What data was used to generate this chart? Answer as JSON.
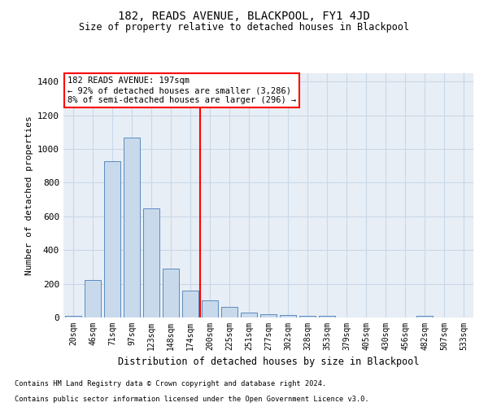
{
  "title": "182, READS AVENUE, BLACKPOOL, FY1 4JD",
  "subtitle": "Size of property relative to detached houses in Blackpool",
  "xlabel": "Distribution of detached houses by size in Blackpool",
  "ylabel": "Number of detached properties",
  "footnote1": "Contains HM Land Registry data © Crown copyright and database right 2024.",
  "footnote2": "Contains public sector information licensed under the Open Government Licence v3.0.",
  "bar_color": "#c9d9ec",
  "bar_edge_color": "#5b8bbf",
  "grid_color": "#c8d8e8",
  "bg_color": "#e8eef5",
  "annotation_title": "182 READS AVENUE: 197sqm",
  "annotation_line1": "← 92% of detached houses are smaller (3,286)",
  "annotation_line2": "8% of semi-detached houses are larger (296) →",
  "categories": [
    "20sqm",
    "46sqm",
    "71sqm",
    "97sqm",
    "123sqm",
    "148sqm",
    "174sqm",
    "200sqm",
    "225sqm",
    "251sqm",
    "277sqm",
    "302sqm",
    "328sqm",
    "353sqm",
    "379sqm",
    "405sqm",
    "430sqm",
    "456sqm",
    "482sqm",
    "507sqm",
    "533sqm"
  ],
  "values": [
    10,
    220,
    930,
    1070,
    650,
    290,
    160,
    100,
    65,
    30,
    20,
    15,
    10,
    10,
    0,
    0,
    0,
    0,
    10,
    0,
    0
  ],
  "marker_bar_index": 7,
  "ylim": [
    0,
    1450
  ],
  "yticks": [
    0,
    200,
    400,
    600,
    800,
    1000,
    1200,
    1400
  ]
}
